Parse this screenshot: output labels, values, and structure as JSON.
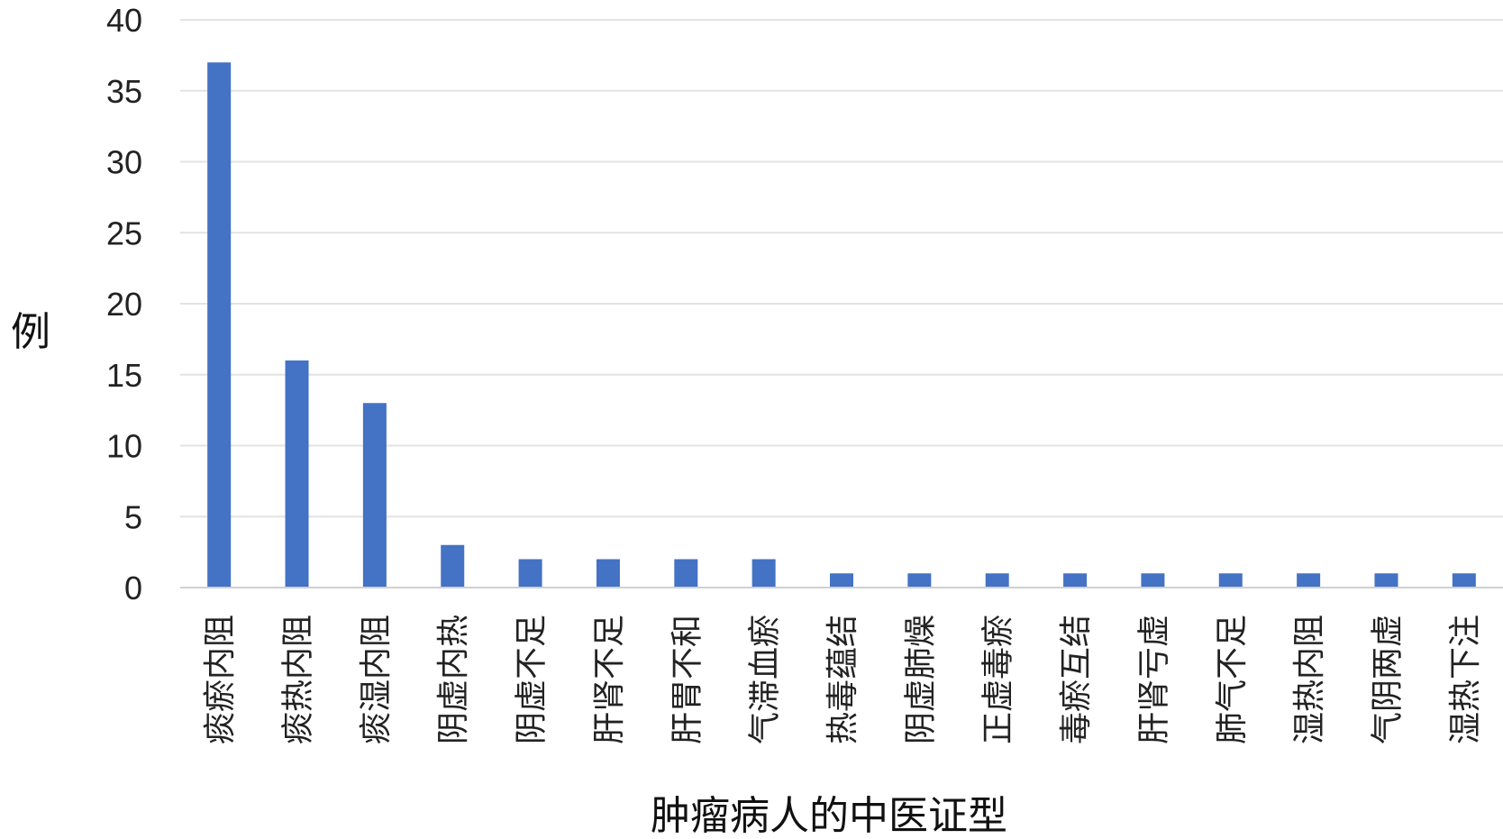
{
  "chart_data": {
    "type": "bar",
    "title": "",
    "xlabel": "肿瘤病人的中医证型",
    "ylabel": "例",
    "ylim": [
      0,
      40
    ],
    "yticks": [
      0,
      5,
      10,
      15,
      20,
      25,
      30,
      35,
      40
    ],
    "grid": true,
    "legend": "none",
    "bar_color": "#4472C4",
    "categories": [
      "痰瘀内阻",
      "痰热内阻",
      "痰湿内阻",
      "阴虚内热",
      "阴虚不足",
      "肝肾不足",
      "肝胃不和",
      "气滞血瘀",
      "热毒蕴结",
      "阴虚肺燥",
      "正虚毒瘀",
      "毒瘀互结",
      "肝肾亏虚",
      "肺气不足",
      "湿热内阻",
      "气阴两虚",
      "湿热下注"
    ],
    "values": [
      37,
      16,
      13,
      3,
      2,
      2,
      2,
      2,
      1,
      1,
      1,
      1,
      1,
      1,
      1,
      1,
      1
    ]
  }
}
